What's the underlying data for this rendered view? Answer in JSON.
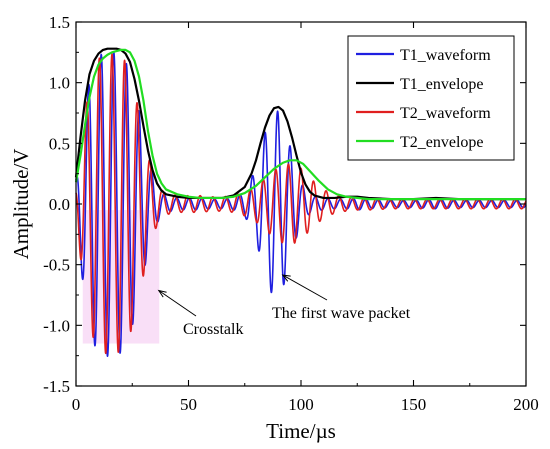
{
  "chart_data": {
    "type": "line",
    "xlabel": "Time/µs",
    "ylabel": "Amplitude/V",
    "xlim": [
      0,
      200
    ],
    "ylim": [
      -1.5,
      1.5
    ],
    "xticks": [
      0,
      50,
      100,
      150,
      200
    ],
    "xtick_labels": [
      "0",
      "50",
      "100",
      "150",
      "200"
    ],
    "yticks": [
      -1.5,
      -1.0,
      -0.5,
      0.0,
      0.5,
      1.0,
      1.5
    ],
    "ytick_labels": [
      "-1.5",
      "-1.0",
      "-0.5",
      "0.0",
      "0.5",
      "1.0",
      "1.5"
    ],
    "grid": false,
    "legend_position": "top-right",
    "series": [
      {
        "name": "T1_waveform",
        "color": "#1f1fe0",
        "envelope_x": [
          0,
          2,
          4,
          6,
          8,
          10,
          12,
          14,
          16,
          18,
          20,
          22,
          24,
          26,
          28,
          30,
          32,
          34,
          36,
          38,
          40,
          45,
          50,
          55,
          60,
          65,
          70,
          75,
          80,
          82,
          84,
          86,
          88,
          90,
          92,
          94,
          96,
          98,
          100,
          102,
          104,
          106,
          110,
          115,
          120,
          125,
          130,
          140,
          150,
          160,
          170,
          180,
          190,
          200
        ],
        "envelope_y": [
          0.2,
          0.5,
          0.8,
          1.05,
          1.18,
          1.24,
          1.27,
          1.28,
          1.28,
          1.27,
          1.25,
          1.2,
          1.1,
          0.95,
          0.78,
          0.58,
          0.4,
          0.26,
          0.16,
          0.1,
          0.07,
          0.05,
          0.05,
          0.05,
          0.04,
          0.04,
          0.05,
          0.1,
          0.3,
          0.45,
          0.6,
          0.72,
          0.78,
          0.78,
          0.7,
          0.58,
          0.42,
          0.28,
          0.18,
          0.12,
          0.08,
          0.06,
          0.05,
          0.04,
          0.04,
          0.05,
          0.04,
          0.03,
          0.03,
          0.04,
          0.03,
          0.03,
          0.03,
          0.03
        ],
        "period_us": 5.6
      },
      {
        "name": "T1_envelope",
        "color": "#000000",
        "x": [
          0,
          2,
          4,
          6,
          8,
          10,
          12,
          14,
          16,
          18,
          20,
          22,
          24,
          26,
          28,
          30,
          32,
          34,
          36,
          38,
          40,
          45,
          50,
          55,
          60,
          65,
          70,
          75,
          78,
          80,
          82,
          84,
          86,
          88,
          90,
          92,
          94,
          96,
          98,
          100,
          102,
          104,
          106,
          110,
          115,
          120,
          125,
          130,
          140,
          150,
          160,
          170,
          180,
          190,
          200
        ],
        "y": [
          0.22,
          0.55,
          0.85,
          1.07,
          1.18,
          1.24,
          1.27,
          1.28,
          1.28,
          1.28,
          1.27,
          1.24,
          1.17,
          1.03,
          0.85,
          0.64,
          0.44,
          0.28,
          0.17,
          0.11,
          0.08,
          0.06,
          0.05,
          0.05,
          0.05,
          0.05,
          0.07,
          0.14,
          0.25,
          0.36,
          0.5,
          0.63,
          0.73,
          0.79,
          0.8,
          0.77,
          0.68,
          0.55,
          0.4,
          0.26,
          0.16,
          0.1,
          0.07,
          0.05,
          0.05,
          0.06,
          0.06,
          0.05,
          0.04,
          0.04,
          0.05,
          0.04,
          0.04,
          0.04,
          0.04
        ]
      },
      {
        "name": "T2_waveform",
        "color": "#e01f1f",
        "envelope_x": [
          0,
          2,
          4,
          6,
          8,
          10,
          12,
          14,
          16,
          18,
          20,
          22,
          24,
          26,
          28,
          30,
          32,
          34,
          36,
          38,
          40,
          45,
          50,
          55,
          60,
          65,
          70,
          75,
          80,
          84,
          88,
          92,
          96,
          100,
          104,
          108,
          112,
          116,
          120,
          125,
          130,
          140,
          150,
          160,
          170,
          180,
          190,
          200
        ],
        "envelope_y": [
          0.15,
          0.45,
          0.75,
          1.0,
          1.15,
          1.22,
          1.25,
          1.26,
          1.26,
          1.25,
          1.24,
          1.2,
          1.1,
          0.95,
          0.78,
          0.6,
          0.42,
          0.28,
          0.18,
          0.12,
          0.09,
          0.07,
          0.07,
          0.07,
          0.06,
          0.06,
          0.07,
          0.1,
          0.15,
          0.22,
          0.28,
          0.33,
          0.34,
          0.3,
          0.22,
          0.15,
          0.1,
          0.07,
          0.06,
          0.05,
          0.05,
          0.04,
          0.04,
          0.04,
          0.04,
          0.04,
          0.04,
          0.04
        ],
        "period_us": 5.6
      },
      {
        "name": "T2_envelope",
        "color": "#22dd22",
        "x": [
          0,
          2,
          4,
          6,
          8,
          10,
          12,
          14,
          16,
          18,
          20,
          22,
          24,
          26,
          28,
          30,
          32,
          34,
          36,
          38,
          40,
          45,
          50,
          55,
          60,
          65,
          70,
          75,
          80,
          84,
          88,
          92,
          95,
          98,
          101,
          104,
          108,
          112,
          116,
          120,
          125,
          130,
          140,
          150,
          160,
          170,
          180,
          190,
          200
        ],
        "y": [
          0.18,
          0.4,
          0.65,
          0.88,
          1.05,
          1.15,
          1.2,
          1.23,
          1.25,
          1.26,
          1.27,
          1.27,
          1.25,
          1.18,
          1.05,
          0.85,
          0.6,
          0.4,
          0.25,
          0.17,
          0.12,
          0.08,
          0.06,
          0.05,
          0.05,
          0.05,
          0.06,
          0.09,
          0.15,
          0.22,
          0.29,
          0.34,
          0.36,
          0.36,
          0.33,
          0.27,
          0.19,
          0.12,
          0.08,
          0.06,
          0.05,
          0.04,
          0.04,
          0.04,
          0.04,
          0.04,
          0.04,
          0.04,
          0.04
        ]
      }
    ],
    "annotations": [
      {
        "text": "Crosstalk",
        "arrow_to_x": 35,
        "arrow_to_y": -0.68
      },
      {
        "text": "The first wave packet",
        "arrow_to_x": 91,
        "arrow_to_y": -0.52
      }
    ],
    "shaded_region": {
      "x0": 3,
      "x1": 37,
      "y0": -1.15,
      "y1": -0.05,
      "color": "#f2b8ee"
    }
  }
}
